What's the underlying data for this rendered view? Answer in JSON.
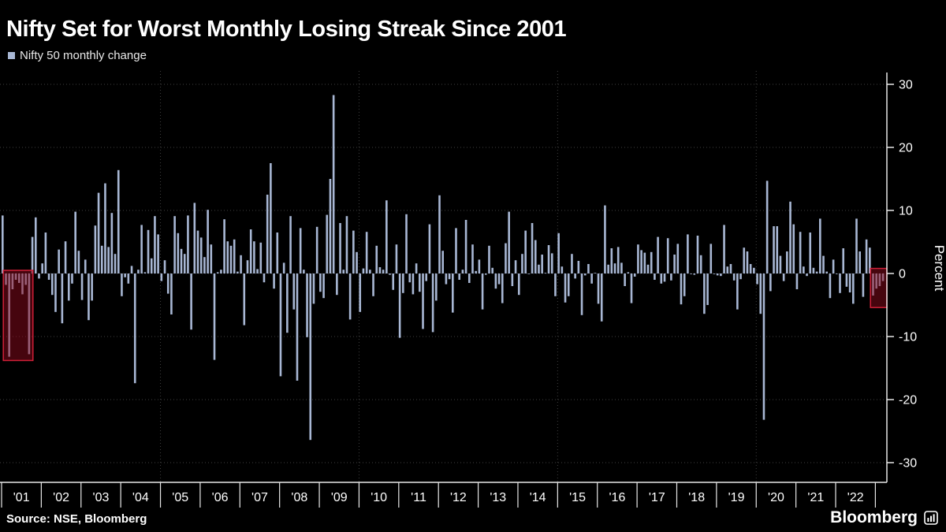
{
  "header": {
    "title": "Nifty Set for Worst Monthly Losing Streak Since 2001"
  },
  "legend": {
    "label": "Nifty 50 monthly change"
  },
  "footer": {
    "source": "Source: NSE, Bloomberg",
    "brand": "Bloomberg"
  },
  "colors": {
    "background": "#000000",
    "bar": "#a8b7d4",
    "grid": "#3f3f3f",
    "axis": "#e8e8e8",
    "text": "#ffffff",
    "highlight_fill": "rgba(140,10,28,0.50)",
    "highlight_border": "#cf2038"
  },
  "chart_data": {
    "type": "bar",
    "title": "Nifty Set for Worst Monthly Losing Streak Since 2001",
    "ylabel": "Percent",
    "unit": "percent",
    "ylim": [
      -32,
      32
    ],
    "y_ticks": [
      30,
      20,
      10,
      0,
      -10,
      -20,
      -30
    ],
    "x_labels": [
      "'01",
      "'02",
      "'03",
      "'04",
      "'05",
      "'06",
      "'07",
      "'08",
      "'09",
      "'10",
      "'11",
      "'12",
      "'13",
      "'14",
      "'15",
      "'16",
      "'17",
      "'18",
      "'19",
      "'20",
      "'21",
      "'22"
    ],
    "start_month": "2001-01",
    "grid_vertical_at": [
      "2005-01",
      "2010-01",
      "2015-01",
      "2020-01"
    ],
    "series": [
      {
        "name": "Nifty 50 monthly change",
        "values_by_year": [
          {
            "year": 2001,
            "values": [
              9.2,
              -1.8,
              -13.2,
              -2.5,
              -1.0,
              -1.5,
              -3.3,
              -1.8,
              -12.8,
              5.8,
              8.9,
              -0.8
            ]
          },
          {
            "year": 2002,
            "values": [
              1.6,
              6.5,
              -1.0,
              -3.4,
              -6.1,
              3.8,
              -7.9,
              5.1,
              -4.3,
              -1.6,
              9.8,
              3.6
            ]
          },
          {
            "year": 2003,
            "values": [
              -4.2,
              2.2,
              -7.4,
              -4.3,
              7.6,
              12.8,
              4.4,
              14.3,
              4.2,
              9.6,
              3.1,
              16.4
            ]
          },
          {
            "year": 2004,
            "values": [
              -3.6,
              -0.6,
              -1.6,
              1.2,
              -17.4,
              0.6,
              7.7,
              0.2,
              6.9,
              2.4,
              9.1,
              6.2
            ]
          },
          {
            "year": 2005,
            "values": [
              -1.2,
              2.1,
              -3.2,
              -6.5,
              9.1,
              6.4,
              3.9,
              3.1,
              9.2,
              -8.9,
              11.2,
              6.8
            ]
          },
          {
            "year": 2006,
            "values": [
              5.7,
              2.6,
              10.1,
              4.6,
              -13.7,
              0.2,
              0.6,
              8.6,
              5.1,
              4.4,
              5.4,
              0.3
            ]
          },
          {
            "year": 2007,
            "values": [
              2.9,
              -8.2,
              2.1,
              7.0,
              5.1,
              0.7,
              4.9,
              -1.4,
              12.5,
              17.5,
              -2.4,
              6.5
            ]
          },
          {
            "year": 2008,
            "values": [
              -16.3,
              1.7,
              -9.4,
              9.1,
              -5.7,
              -17.0,
              7.2,
              0.6,
              -10.1,
              -26.4,
              -4.8,
              7.4
            ]
          },
          {
            "year": 2009,
            "values": [
              -2.9,
              -3.9,
              9.3,
              15.0,
              28.3,
              -3.4,
              8.0,
              0.6,
              9.1,
              -7.3,
              6.8,
              3.4
            ]
          },
          {
            "year": 2010,
            "values": [
              -6.1,
              0.8,
              6.6,
              0.6,
              -3.6,
              4.4,
              1.0,
              0.6,
              11.6,
              -0.2,
              -2.6,
              4.6
            ]
          },
          {
            "year": 2011,
            "values": [
              -10.2,
              -3.1,
              9.4,
              -1.4,
              -3.3,
              1.6,
              -2.9,
              -8.8,
              -1.2,
              7.8,
              -9.3,
              -4.3
            ]
          },
          {
            "year": 2012,
            "values": [
              12.4,
              3.6,
              -1.7,
              -0.9,
              -6.2,
              7.2,
              -1.0,
              0.6,
              8.5,
              -1.5,
              4.6,
              0.4
            ]
          },
          {
            "year": 2013,
            "values": [
              2.2,
              -5.7,
              -0.2,
              4.4,
              0.9,
              -2.4,
              -1.7,
              -4.7,
              4.8,
              9.8,
              -2.0,
              2.1
            ]
          },
          {
            "year": 2014,
            "values": [
              -3.4,
              3.1,
              6.8,
              -0.1,
              8.0,
              5.3,
              1.4,
              3.0,
              0.1,
              4.5,
              3.2,
              -3.6
            ]
          },
          {
            "year": 2015,
            "values": [
              6.4,
              1.1,
              -4.6,
              -3.6,
              3.1,
              -0.8,
              2.0,
              -6.6,
              -0.3,
              1.5,
              -1.6,
              0.1
            ]
          },
          {
            "year": 2016,
            "values": [
              -4.8,
              -7.6,
              10.8,
              1.4,
              4.0,
              1.6,
              4.2,
              1.7,
              -2.0,
              0.2,
              -4.7,
              -0.5
            ]
          },
          {
            "year": 2017,
            "values": [
              4.6,
              3.7,
              3.3,
              1.4,
              3.4,
              -1.0,
              5.8,
              -1.6,
              -1.3,
              5.6,
              -1.1,
              3.0
            ]
          },
          {
            "year": 2018,
            "values": [
              4.7,
              -4.9,
              -3.6,
              6.2,
              -0.1,
              -0.2,
              6.0,
              2.9,
              -6.4,
              -5.0,
              4.7,
              -0.1
            ]
          },
          {
            "year": 2019,
            "values": [
              -0.3,
              -0.4,
              7.7,
              1.1,
              1.5,
              -1.1,
              -5.7,
              -0.9,
              4.1,
              3.5,
              1.5,
              0.9
            ]
          },
          {
            "year": 2020,
            "values": [
              -1.7,
              -6.4,
              -23.2,
              14.7,
              -2.8,
              7.5,
              7.5,
              2.8,
              -1.2,
              3.5,
              11.4,
              7.8
            ]
          },
          {
            "year": 2021,
            "values": [
              -2.5,
              6.6,
              1.1,
              -0.4,
              6.5,
              0.9,
              0.3,
              8.7,
              2.8,
              0.3,
              -3.9,
              2.2
            ]
          },
          {
            "year": 2022,
            "values": [
              -0.1,
              -3.1,
              4.0,
              -2.1,
              -3.0,
              -4.8,
              8.7,
              3.5,
              -3.7,
              5.4,
              4.1,
              -3.5
            ]
          },
          {
            "year": 2023,
            "values": [
              -2.4,
              -2.0,
              -1.2
            ]
          }
        ]
      }
    ],
    "highlights": [
      {
        "from": "2001-02",
        "to": "2001-09",
        "top": 0.5,
        "bottom": -13.8
      },
      {
        "from": "2022-12",
        "to": "2023-03",
        "top": 0.8,
        "bottom": -5.4
      }
    ],
    "legend_position": "top-left",
    "grid": "dashed"
  }
}
